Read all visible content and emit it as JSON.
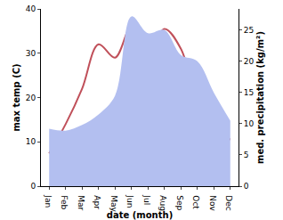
{
  "chart_data": {
    "type": "line",
    "x_label": "date (month)",
    "y_label": "max temp (C)",
    "y2_label": "med. precipitation (kg/m²)",
    "categories": [
      "Jan",
      "Feb",
      "Mar",
      "Apr",
      "May",
      "Jun",
      "Jul",
      "Aug",
      "Sep",
      "Oct",
      "Nov",
      "Dec"
    ],
    "series": [
      {
        "type": "area",
        "axis": "y2",
        "color": "#b3bff0",
        "values": [
          9.2,
          8.9,
          9.8,
          11.5,
          14.5,
          27.2,
          24.5,
          25,
          21,
          20,
          15,
          10.5
        ]
      },
      {
        "type": "line",
        "axis": "y",
        "color": "#c0505a",
        "values": [
          7.4,
          14,
          22,
          32,
          29,
          36,
          29.5,
          35.5,
          31,
          19,
          13,
          10.5
        ]
      }
    ],
    "ylim": [
      0,
      40
    ],
    "yticks": [
      0,
      10,
      20,
      30,
      40
    ],
    "y2lim": [
      0,
      28.4
    ],
    "y2ticks": [
      0,
      5,
      10,
      15,
      20,
      25
    ],
    "grid": false
  }
}
